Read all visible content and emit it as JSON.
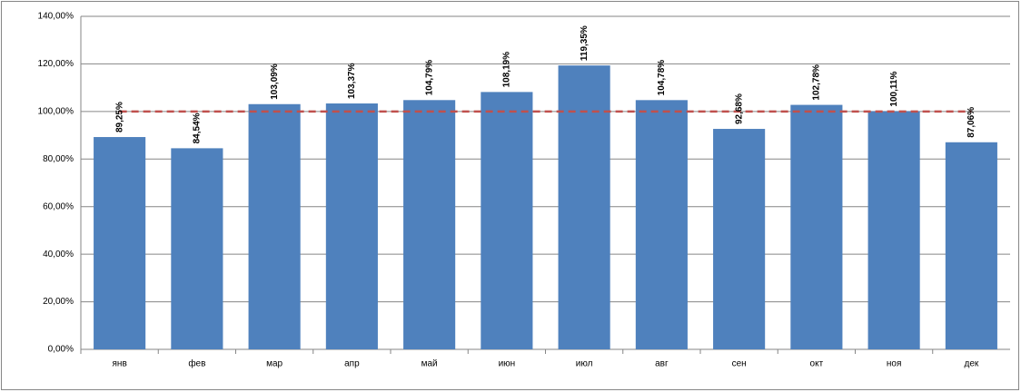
{
  "chart_data": {
    "type": "bar",
    "categories": [
      "янв",
      "фев",
      "мар",
      "апр",
      "май",
      "июн",
      "июл",
      "авг",
      "сен",
      "окт",
      "ноя",
      "дек"
    ],
    "series": [
      {
        "type": "bar",
        "color": "#4f81bd",
        "values": [
          89.25,
          84.54,
          103.09,
          103.37,
          104.79,
          108.19,
          119.35,
          104.78,
          92.68,
          102.78,
          100.11,
          87.06
        ],
        "value_labels": [
          "89,25%",
          "84,54%",
          "103,09%",
          "103,37%",
          "104,79%",
          "108,19%",
          "119,35%",
          "104,78%",
          "92,68%",
          "102,78%",
          "100,11%",
          "87,06%"
        ]
      },
      {
        "type": "line",
        "color": "#c0504d",
        "dashed": true,
        "values": [
          100,
          100,
          100,
          100,
          100,
          100,
          100,
          100,
          100,
          100,
          100,
          100
        ]
      }
    ],
    "ylim": [
      0,
      140
    ],
    "yticks": [
      {
        "value": 0,
        "label": "0,00%"
      },
      {
        "value": 20,
        "label": "20,00%"
      },
      {
        "value": 40,
        "label": "40,00%"
      },
      {
        "value": 60,
        "label": "60,00%"
      },
      {
        "value": 80,
        "label": "80,00%"
      },
      {
        "value": 100,
        "label": "100,00%"
      },
      {
        "value": 120,
        "label": "120,00%"
      },
      {
        "value": 140,
        "label": "140,00%"
      }
    ],
    "grid": true
  }
}
